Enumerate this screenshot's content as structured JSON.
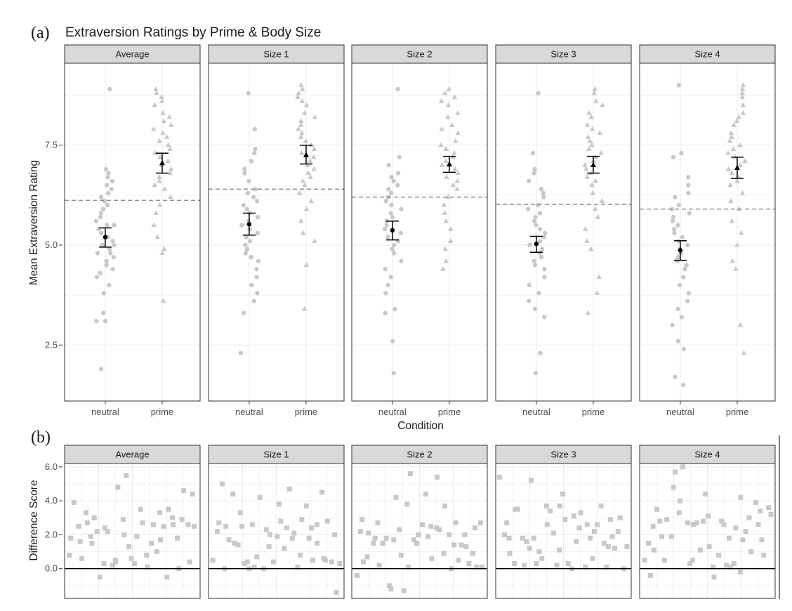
{
  "panel_a": {
    "letter": "(a)",
    "title": "Extraversion Ratings by Prime & Body Size",
    "ylabel": "Mean Extraversion Rating",
    "xlabel": "Condition"
  },
  "panel_b": {
    "letter": "(b)",
    "ylabel": "Difference Score"
  },
  "colors": {
    "points": "#c8c8c8",
    "means": "#000000",
    "reference_line": "#808080",
    "strip": "#d9d9d9",
    "grid": "#ebebeb"
  },
  "chart_data": [
    {
      "type": "scatter",
      "facets": [
        "Average",
        "Size 1",
        "Size 2",
        "Size 3",
        "Size 4"
      ],
      "categories": [
        "neutral",
        "prime"
      ],
      "ylim": [
        1.1,
        9.55
      ],
      "yticks": [
        2.5,
        5.0,
        7.5
      ],
      "ytick_labels": [
        "2.5",
        "5.0",
        "7.5"
      ],
      "grid": true,
      "title": "Extraversion Ratings by Prime & Body Size",
      "xlabel": "Condition",
      "ylabel": "Mean Extraversion Rating",
      "reference_lines": [
        6.12,
        6.4,
        6.2,
        6.02,
        5.9
      ],
      "means": {
        "neutral": [
          5.2,
          5.52,
          5.37,
          5.03,
          4.87
        ],
        "prime": [
          7.05,
          7.25,
          7.02,
          7.0,
          6.93
        ]
      },
      "ci_lower": {
        "neutral": [
          4.95,
          5.25,
          5.13,
          4.82,
          4.62
        ],
        "prime": [
          6.8,
          7.03,
          6.82,
          6.8,
          6.67
        ]
      },
      "ci_upper": {
        "neutral": [
          5.43,
          5.8,
          5.6,
          5.22,
          5.11
        ],
        "prime": [
          7.3,
          7.5,
          7.22,
          7.22,
          7.2
        ]
      },
      "points": [
        {
          "neutral": [
            8.9,
            1.9,
            3.1,
            3.1,
            3.3,
            3.8,
            4.0,
            4.2,
            4.3,
            4.4,
            4.5,
            4.6,
            4.7,
            4.8,
            4.8,
            4.9,
            5.0,
            5.0,
            5.1,
            5.2,
            5.3,
            5.4,
            5.5,
            5.5,
            5.6,
            5.7,
            5.8,
            5.9,
            6.0,
            6.1,
            6.2,
            6.3,
            6.4,
            6.5,
            6.6,
            6.7,
            6.8,
            6.9
          ],
          "prime": [
            3.6,
            4.8,
            4.9,
            5.2,
            5.5,
            5.8,
            6.0,
            6.2,
            6.4,
            6.5,
            6.6,
            6.7,
            6.8,
            6.9,
            7.0,
            7.1,
            7.2,
            7.3,
            7.4,
            7.5,
            7.6,
            7.7,
            7.8,
            7.9,
            8.0,
            8.1,
            8.2,
            8.3,
            8.5,
            8.6,
            8.7,
            8.8,
            8.9
          ]
        },
        {
          "neutral": [
            8.8,
            2.3,
            3.3,
            3.6,
            3.8,
            4.0,
            4.2,
            4.4,
            4.6,
            4.7,
            4.8,
            4.9,
            5.0,
            5.1,
            5.2,
            5.3,
            5.4,
            5.5,
            5.6,
            5.7,
            5.8,
            5.9,
            6.0,
            6.1,
            6.2,
            6.3,
            6.4,
            6.6,
            6.8,
            6.9,
            7.1,
            7.3,
            7.4,
            7.9
          ],
          "prime": [
            3.4,
            4.5,
            5.1,
            5.3,
            5.6,
            5.9,
            6.1,
            6.3,
            6.5,
            6.6,
            6.7,
            6.8,
            6.9,
            7.0,
            7.1,
            7.2,
            7.3,
            7.4,
            7.5,
            7.6,
            7.7,
            7.8,
            7.9,
            8.0,
            8.1,
            8.2,
            8.3,
            8.5,
            8.6,
            8.7,
            8.8,
            8.9,
            9.0
          ]
        },
        {
          "neutral": [
            8.9,
            1.8,
            2.6,
            3.3,
            3.4,
            3.8,
            4.0,
            4.2,
            4.4,
            4.6,
            4.8,
            4.9,
            5.0,
            5.1,
            5.2,
            5.3,
            5.4,
            5.5,
            5.6,
            5.7,
            5.8,
            5.9,
            6.0,
            6.1,
            6.2,
            6.3,
            6.4,
            6.5,
            6.6,
            6.7,
            6.8,
            7.0,
            7.2
          ],
          "prime": [
            4.4,
            4.6,
            4.9,
            5.1,
            5.4,
            5.6,
            5.8,
            6.0,
            6.2,
            6.4,
            6.5,
            6.6,
            6.7,
            6.8,
            6.9,
            7.0,
            7.1,
            7.2,
            7.3,
            7.4,
            7.5,
            7.6,
            7.8,
            7.9,
            8.0,
            8.2,
            8.3,
            8.5,
            8.6,
            8.7,
            8.8,
            8.9
          ]
        },
        {
          "neutral": [
            8.8,
            1.8,
            2.3,
            3.2,
            3.4,
            3.6,
            3.8,
            4.0,
            4.2,
            4.4,
            4.5,
            4.6,
            4.7,
            4.8,
            4.9,
            5.0,
            5.1,
            5.2,
            5.3,
            5.4,
            5.5,
            5.6,
            5.7,
            5.8,
            5.9,
            6.0,
            6.2,
            6.3,
            6.4,
            6.6,
            6.8,
            6.9,
            7.3
          ],
          "prime": [
            3.3,
            3.8,
            4.2,
            4.9,
            5.1,
            5.4,
            5.7,
            5.9,
            6.1,
            6.3,
            6.5,
            6.6,
            6.7,
            6.8,
            6.9,
            7.0,
            7.1,
            7.2,
            7.3,
            7.4,
            7.5,
            7.6,
            7.7,
            7.8,
            7.9,
            8.0,
            8.2,
            8.3,
            8.5,
            8.6,
            8.8,
            8.9
          ]
        },
        {
          "neutral": [
            9.0,
            1.5,
            1.7,
            2.4,
            2.6,
            3.0,
            3.2,
            3.4,
            3.6,
            3.8,
            4.0,
            4.2,
            4.4,
            4.5,
            4.6,
            4.7,
            4.8,
            4.9,
            5.0,
            5.1,
            5.2,
            5.3,
            5.4,
            5.5,
            5.6,
            5.7,
            5.8,
            5.9,
            6.0,
            6.2,
            6.3,
            6.5,
            6.7,
            7.2,
            7.3
          ],
          "prime": [
            2.3,
            3.0,
            4.4,
            4.6,
            5.0,
            5.3,
            5.6,
            5.9,
            6.1,
            6.3,
            6.5,
            6.6,
            6.7,
            6.8,
            6.9,
            7.0,
            7.1,
            7.2,
            7.3,
            7.4,
            7.5,
            7.6,
            7.7,
            7.8,
            8.0,
            8.1,
            8.2,
            8.3,
            8.5,
            8.7,
            8.8,
            8.9,
            9.0
          ]
        }
      ]
    },
    {
      "type": "scatter",
      "facets": [
        "Average",
        "Size 1",
        "Size 2",
        "Size 3",
        "Size 4"
      ],
      "ylim": [
        -1.75,
        6.2
      ],
      "yticks": [
        0.0,
        2.0,
        4.0,
        6.0
      ],
      "ytick_labels": [
        "0.0",
        "2.0",
        "4.0",
        "6.0"
      ],
      "grid": true,
      "ylabel": "Difference Score",
      "reference_line": 0,
      "series": [
        {
          "facet": "Average",
          "values": [
            0.8,
            1.8,
            3.9,
            2.5,
            1.6,
            0.6,
            3.3,
            2.7,
            1.9,
            1.5,
            3.0,
            2.2,
            -0.5,
            0.3,
            2.4,
            2.2,
            0.2,
            0.5,
            0.4,
            4.8,
            2.9,
            2.0,
            5.5,
            1.3,
            0.6,
            0.3,
            1.9,
            3.5,
            2.7,
            0.8,
            0.1,
            1.5,
            2.6,
            1.0,
            3.3,
            1.7,
            2.5,
            -0.5,
            3.5,
            3.0,
            2.6,
            1.8,
            0.0,
            2.9,
            4.6,
            2.6,
            0.4,
            4.4,
            2.5
          ]
        },
        {
          "facet": "Size 1",
          "values": [
            0.5,
            2.2,
            2.7,
            5.0,
            0.0,
            2.5,
            1.7,
            4.4,
            1.5,
            1.4,
            3.3,
            2.5,
            0.3,
            0.4,
            0.0,
            2.6,
            0.1,
            0.7,
            4.2,
            0.0,
            2.3,
            1.3,
            2.0,
            0.4,
            1.9,
            3.8,
            2.8,
            1.2,
            2.4,
            4.7,
            1.8,
            2.1,
            0.1,
            0.8,
            2.9,
            3.7,
            1.8,
            2.4,
            0.5,
            2.6,
            1.5,
            4.5,
            0.6,
            0.5,
            2.8,
            0.4,
            2.0,
            -1.4,
            0.3
          ]
        },
        {
          "facet": "Size 2",
          "values": [
            -0.4,
            2.2,
            2.9,
            0.4,
            0.7,
            2.1,
            1.5,
            1.8,
            2.7,
            0.2,
            1.5,
            1.8,
            -1.0,
            -1.2,
            1.7,
            4.2,
            2.3,
            0.8,
            -1.3,
            3.8,
            0.1,
            5.6,
            1.7,
            1.5,
            2.0,
            2.6,
            4.4,
            1.9,
            2.5,
            0.6,
            2.4,
            5.4,
            2.3,
            0.9,
            3.7,
            2.0,
            0.0,
            1.4,
            2.7,
            0.5,
            1.4,
            2.0,
            1.3,
            0.3,
            0.9,
            2.4,
            0.1,
            2.7,
            0.1
          ]
        },
        {
          "facet": "Size 3",
          "values": [
            5.4,
            2.0,
            2.7,
            1.8,
            0.9,
            0.3,
            3.5,
            3.5,
            1.8,
            0.2,
            1.6,
            1.2,
            5.2,
            1.8,
            0.3,
            1.0,
            0.6,
            3.7,
            2.6,
            3.4,
            2.1,
            0.2,
            1.1,
            3.7,
            4.4,
            2.9,
            0.3,
            0.0,
            3.1,
            1.6,
            2.4,
            3.3,
            0.1,
            2.6,
            1.8,
            0.6,
            2.2,
            2.6,
            3.7,
            1.5,
            0.1,
            1.3,
            2.9,
            1.9,
            1.2,
            2.2,
            3.0,
            0.0,
            1.3
          ]
        },
        {
          "facet": "Size 4",
          "values": [
            0.5,
            1.5,
            -0.4,
            2.5,
            1.1,
            3.5,
            2.8,
            1.9,
            0.5,
            2.9,
            1.9,
            4.8,
            5.7,
            3.3,
            4.0,
            6.0,
            2.7,
            0.3,
            0.5,
            2.6,
            2.7,
            1.1,
            2.8,
            4.4,
            3.1,
            1.3,
            0.1,
            -0.5,
            0.8,
            2.8,
            2.6,
            0.2,
            1.8,
            0.1,
            0.3,
            2.4,
            -0.2,
            4.2,
            1.7,
            2.2,
            3.0,
            1.0,
            3.9,
            2.6,
            3.4,
            1.7,
            0.8,
            3.6,
            3.2
          ]
        }
      ]
    }
  ]
}
